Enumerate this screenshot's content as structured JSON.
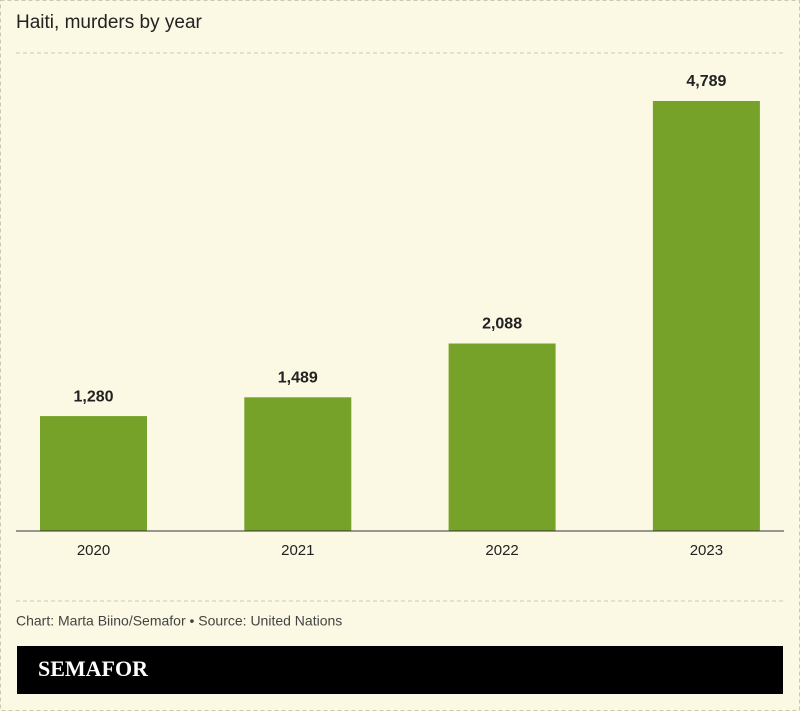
{
  "chart_data": {
    "type": "bar",
    "title": "Haiti, murders by year",
    "categories": [
      "2020",
      "2021",
      "2022",
      "2023"
    ],
    "values": [
      1280,
      1489,
      2088,
      4789
    ],
    "value_labels": [
      "1,280",
      "1,489",
      "2,088",
      "4,789"
    ],
    "color": "#76a22a",
    "source": "Chart: Marta Biino/Semafor • Source: United Nations",
    "brand": "SEMAFOR"
  }
}
